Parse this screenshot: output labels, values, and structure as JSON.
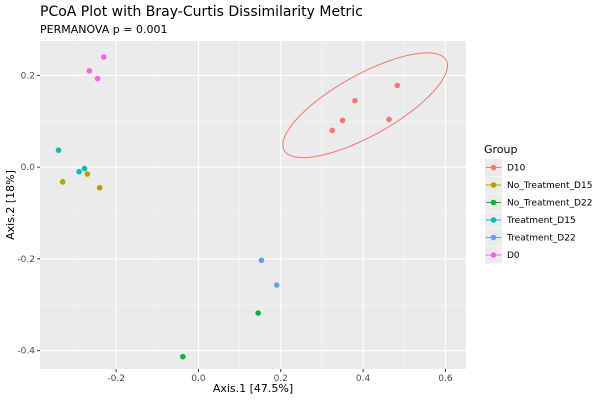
{
  "chart_data": {
    "type": "scatter",
    "title": "PCoA Plot with Bray-Curtis Dissimilarity Metric",
    "subtitle": "PERMANOVA p = 0.001",
    "xlabel": "Axis.1  [47.5%]",
    "ylabel": "Axis.2  [18%]",
    "xlim": [
      -0.385,
      0.65
    ],
    "ylim": [
      -0.44,
      0.275
    ],
    "xticks": [
      -0.2,
      0.0,
      0.2,
      0.4,
      0.6
    ],
    "xtick_labels": [
      "-0.2",
      "0.0",
      "0.2",
      "0.4",
      "0.6"
    ],
    "yticks": [
      -0.4,
      -0.2,
      0.0,
      0.2
    ],
    "ytick_labels": [
      "-0.4",
      "-0.2",
      "0.0",
      "0.2"
    ],
    "grid": true,
    "background": "#ebebeb",
    "legend": {
      "title": "Group",
      "position": "right"
    },
    "series": [
      {
        "name": "D10",
        "color": "#F8766D",
        "points": [
          [
            0.325,
            0.08
          ],
          [
            0.35,
            0.102
          ],
          [
            0.38,
            0.145
          ],
          [
            0.463,
            0.104
          ],
          [
            0.483,
            0.178
          ]
        ]
      },
      {
        "name": "No_Treatment_D15",
        "color": "#B79F00",
        "points": [
          [
            -0.33,
            -0.032
          ],
          [
            -0.27,
            -0.015
          ],
          [
            -0.24,
            -0.045
          ]
        ]
      },
      {
        "name": "No_Treatment_D22",
        "color": "#00BA38",
        "points": [
          [
            -0.038,
            -0.413
          ],
          [
            0.145,
            -0.318
          ]
        ]
      },
      {
        "name": "Treatment_D15",
        "color": "#00BFC4",
        "points": [
          [
            -0.34,
            0.037
          ],
          [
            -0.29,
            -0.01
          ],
          [
            -0.277,
            -0.003
          ]
        ]
      },
      {
        "name": "Treatment_D22",
        "color": "#619CFF",
        "points": [
          [
            0.153,
            -0.203
          ],
          [
            0.19,
            -0.257
          ]
        ]
      },
      {
        "name": "D0",
        "color": "#F564E3",
        "points": [
          [
            -0.265,
            0.21
          ],
          [
            -0.23,
            0.24
          ],
          [
            -0.245,
            0.193
          ]
        ]
      }
    ],
    "annotations": [
      {
        "type": "ellipse",
        "group": "D10",
        "color": "#F8766D",
        "center": [
          0.405,
          0.135
        ],
        "semi_major": 0.22,
        "semi_minor": 0.068,
        "angle_deg": 26
      }
    ]
  }
}
